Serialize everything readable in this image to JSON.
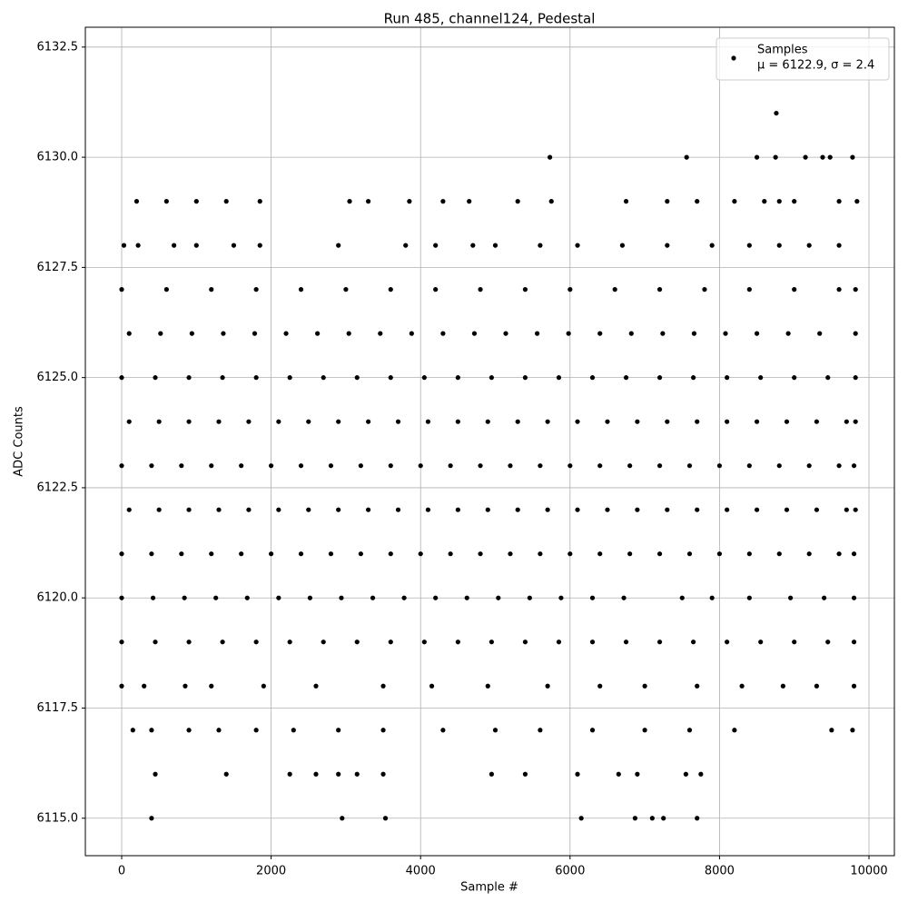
{
  "chart_data": {
    "type": "scatter",
    "title": "Run 485, channel124, Pedestal",
    "x_label": "Sample #",
    "y_label": "ADC Counts",
    "xlim": [
      -486,
      10340
    ],
    "ylim": [
      6114.15,
      6132.95
    ],
    "xticks": [
      0,
      2000,
      4000,
      6000,
      8000,
      10000
    ],
    "yticks": [
      {
        "value": 6115,
        "label": "6115.0"
      },
      {
        "value": 6117.5,
        "label": "6117.5"
      },
      {
        "value": 6120,
        "label": "6120.0"
      },
      {
        "value": 6122.5,
        "label": "6122.5"
      },
      {
        "value": 6125,
        "label": "6125.0"
      },
      {
        "value": 6127.5,
        "label": "6127.5"
      },
      {
        "value": 6130,
        "label": "6130.0"
      },
      {
        "value": 6132.5,
        "label": "6132.5"
      }
    ],
    "grid": true,
    "legend": "upper right",
    "series": [
      {
        "name": "Samples",
        "legend_label": "μ = 6122.9, σ = 2.4",
        "color": "#000000",
        "x": [
          400,
          2950,
          3530,
          6150,
          6870,
          7100,
          7250,
          7700,
          450,
          1400,
          2250,
          2600,
          2900,
          3150,
          3500,
          4950,
          5400,
          6100,
          6650,
          6900,
          7550,
          7750,
          150,
          400,
          900,
          1300,
          1800,
          2300,
          2900,
          3500,
          4300,
          5000,
          5600,
          6300,
          7000,
          7600,
          8200,
          9500,
          9780,
          0,
          300,
          850,
          1200,
          1900,
          2600,
          3500,
          4150,
          4900,
          5700,
          6400,
          7000,
          7700,
          8300,
          8850,
          9300,
          9800,
          0,
          450,
          900,
          1350,
          1800,
          2250,
          2700,
          3150,
          3600,
          4050,
          4500,
          4950,
          5400,
          5850,
          6300,
          6750,
          7200,
          7650,
          8100,
          8550,
          9000,
          9450,
          9800,
          0,
          420,
          840,
          1260,
          1680,
          2100,
          2520,
          2940,
          3360,
          3780,
          4200,
          4620,
          5040,
          5460,
          5880,
          6300,
          6720,
          7500,
          7900,
          8400,
          8950,
          9400,
          9800,
          0,
          400,
          800,
          1200,
          1600,
          2000,
          2400,
          2800,
          3200,
          3600,
          4000,
          4400,
          4800,
          5200,
          5600,
          6000,
          6400,
          6800,
          7200,
          7600,
          8000,
          8400,
          8800,
          9200,
          9600,
          9800,
          100,
          500,
          900,
          1300,
          1700,
          2100,
          2500,
          2900,
          3300,
          3700,
          4100,
          4500,
          4900,
          5300,
          5700,
          6100,
          6500,
          6900,
          7300,
          7700,
          8100,
          8500,
          8900,
          9300,
          9700,
          9820,
          0,
          400,
          800,
          1200,
          1600,
          2000,
          2400,
          2800,
          3200,
          3600,
          4000,
          4400,
          4800,
          5200,
          5600,
          6000,
          6400,
          6800,
          7200,
          7600,
          8000,
          8400,
          8800,
          9200,
          9600,
          9800,
          100,
          500,
          900,
          1300,
          1700,
          2100,
          2500,
          2900,
          3300,
          3700,
          4100,
          4500,
          4900,
          5300,
          5700,
          6100,
          6500,
          6900,
          7300,
          7700,
          8100,
          8500,
          8900,
          9300,
          9700,
          9820,
          0,
          450,
          900,
          1350,
          1800,
          2250,
          2700,
          3150,
          3600,
          4050,
          4500,
          4950,
          5400,
          5850,
          6300,
          6750,
          7200,
          7650,
          8100,
          8550,
          9000,
          9450,
          9820,
          100,
          520,
          940,
          1360,
          1780,
          2200,
          2620,
          3040,
          3460,
          3880,
          4300,
          4720,
          5140,
          5560,
          5980,
          6400,
          6820,
          7240,
          7660,
          8080,
          8500,
          8920,
          9340,
          9820,
          0,
          600,
          1200,
          1800,
          2400,
          3000,
          3600,
          4200,
          4800,
          5400,
          6000,
          6600,
          7200,
          7800,
          8400,
          9000,
          9600,
          9820,
          30,
          220,
          700,
          1000,
          1500,
          1850,
          2900,
          3800,
          4200,
          4700,
          5000,
          5600,
          6100,
          6700,
          7300,
          7900,
          8400,
          8800,
          9200,
          9600,
          200,
          600,
          1000,
          1400,
          1850,
          3050,
          3300,
          3850,
          4300,
          4650,
          5300,
          5750,
          6750,
          7300,
          7700,
          8200,
          8600,
          8800,
          9000,
          9600,
          9840,
          5730,
          7560,
          8500,
          8750,
          9150,
          9380,
          9480,
          9780,
          8760
        ],
        "values": [
          6115,
          6115,
          6115,
          6115,
          6115,
          6115,
          6115,
          6115,
          6116,
          6116,
          6116,
          6116,
          6116,
          6116,
          6116,
          6116,
          6116,
          6116,
          6116,
          6116,
          6116,
          6116,
          6117,
          6117,
          6117,
          6117,
          6117,
          6117,
          6117,
          6117,
          6117,
          6117,
          6117,
          6117,
          6117,
          6117,
          6117,
          6117,
          6117,
          6118,
          6118,
          6118,
          6118,
          6118,
          6118,
          6118,
          6118,
          6118,
          6118,
          6118,
          6118,
          6118,
          6118,
          6118,
          6118,
          6118,
          6119,
          6119,
          6119,
          6119,
          6119,
          6119,
          6119,
          6119,
          6119,
          6119,
          6119,
          6119,
          6119,
          6119,
          6119,
          6119,
          6119,
          6119,
          6119,
          6119,
          6119,
          6119,
          6119,
          6120,
          6120,
          6120,
          6120,
          6120,
          6120,
          6120,
          6120,
          6120,
          6120,
          6120,
          6120,
          6120,
          6120,
          6120,
          6120,
          6120,
          6120,
          6120,
          6120,
          6120,
          6120,
          6120,
          6121,
          6121,
          6121,
          6121,
          6121,
          6121,
          6121,
          6121,
          6121,
          6121,
          6121,
          6121,
          6121,
          6121,
          6121,
          6121,
          6121,
          6121,
          6121,
          6121,
          6121,
          6121,
          6121,
          6121,
          6121,
          6121,
          6122,
          6122,
          6122,
          6122,
          6122,
          6122,
          6122,
          6122,
          6122,
          6122,
          6122,
          6122,
          6122,
          6122,
          6122,
          6122,
          6122,
          6122,
          6122,
          6122,
          6122,
          6122,
          6122,
          6122,
          6122,
          6122,
          6123,
          6123,
          6123,
          6123,
          6123,
          6123,
          6123,
          6123,
          6123,
          6123,
          6123,
          6123,
          6123,
          6123,
          6123,
          6123,
          6123,
          6123,
          6123,
          6123,
          6123,
          6123,
          6123,
          6123,
          6123,
          6123,
          6124,
          6124,
          6124,
          6124,
          6124,
          6124,
          6124,
          6124,
          6124,
          6124,
          6124,
          6124,
          6124,
          6124,
          6124,
          6124,
          6124,
          6124,
          6124,
          6124,
          6124,
          6124,
          6124,
          6124,
          6124,
          6124,
          6125,
          6125,
          6125,
          6125,
          6125,
          6125,
          6125,
          6125,
          6125,
          6125,
          6125,
          6125,
          6125,
          6125,
          6125,
          6125,
          6125,
          6125,
          6125,
          6125,
          6125,
          6125,
          6125,
          6126,
          6126,
          6126,
          6126,
          6126,
          6126,
          6126,
          6126,
          6126,
          6126,
          6126,
          6126,
          6126,
          6126,
          6126,
          6126,
          6126,
          6126,
          6126,
          6126,
          6126,
          6126,
          6126,
          6126,
          6127,
          6127,
          6127,
          6127,
          6127,
          6127,
          6127,
          6127,
          6127,
          6127,
          6127,
          6127,
          6127,
          6127,
          6127,
          6127,
          6127,
          6127,
          6128,
          6128,
          6128,
          6128,
          6128,
          6128,
          6128,
          6128,
          6128,
          6128,
          6128,
          6128,
          6128,
          6128,
          6128,
          6128,
          6128,
          6128,
          6128,
          6128,
          6129,
          6129,
          6129,
          6129,
          6129,
          6129,
          6129,
          6129,
          6129,
          6129,
          6129,
          6129,
          6129,
          6129,
          6129,
          6129,
          6129,
          6129,
          6129,
          6129,
          6129,
          6130,
          6130,
          6130,
          6130,
          6130,
          6130,
          6130,
          6130,
          6131
        ]
      }
    ]
  }
}
